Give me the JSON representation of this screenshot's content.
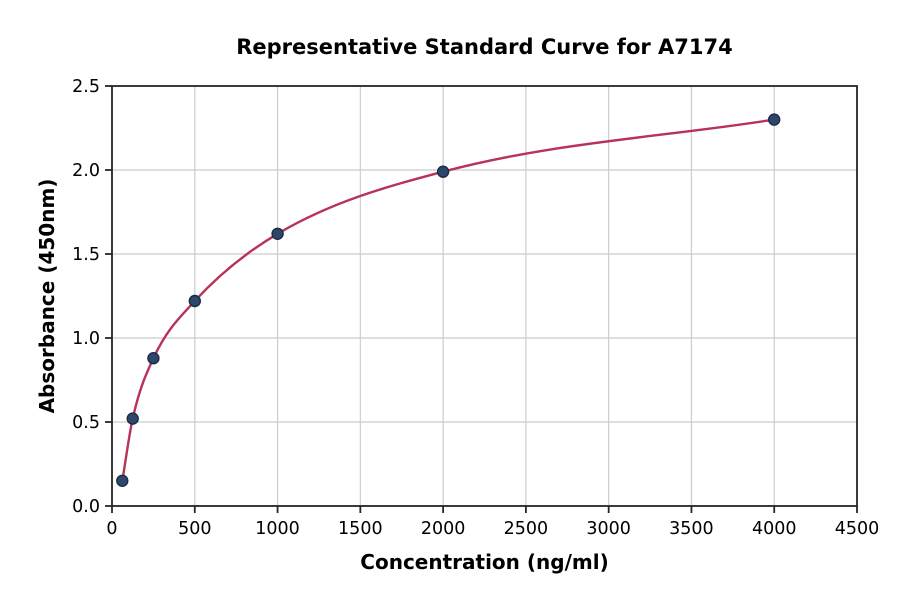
{
  "chart_data": {
    "type": "scatter",
    "title": "Representative Standard Curve for A7174",
    "xlabel": "Concentration (ng/ml)",
    "ylabel": "Absorbance (450nm)",
    "x": [
      62.5,
      125,
      250,
      500,
      1000,
      2000,
      4000
    ],
    "y": [
      0.15,
      0.52,
      0.88,
      1.22,
      1.62,
      1.99,
      2.3
    ],
    "curve": "smooth monotone fit through all points, drawn from first to last point",
    "xlim": [
      0,
      4500
    ],
    "ylim": [
      0,
      2.5
    ],
    "xticks": [
      0,
      500,
      1000,
      1500,
      2000,
      2500,
      3000,
      3500,
      4000,
      4500
    ],
    "xtick_labels": [
      "0",
      "500",
      "1000",
      "1500",
      "2000",
      "2500",
      "3000",
      "3500",
      "4000",
      "4500"
    ],
    "yticks": [
      0,
      0.5,
      1.0,
      1.5,
      2.0,
      2.5
    ],
    "ytick_labels": [
      "0.0",
      "0.5",
      "1.0",
      "1.5",
      "2.0",
      "2.5"
    ],
    "grid": true,
    "legend": "none",
    "colors": {
      "line": "#b73358",
      "marker_fill": "#2e466b",
      "marker_edge": "#1c2b44",
      "grid": "#cccccc",
      "spine": "#262626",
      "tick_text": "#000000",
      "background": "#ffffff"
    }
  }
}
